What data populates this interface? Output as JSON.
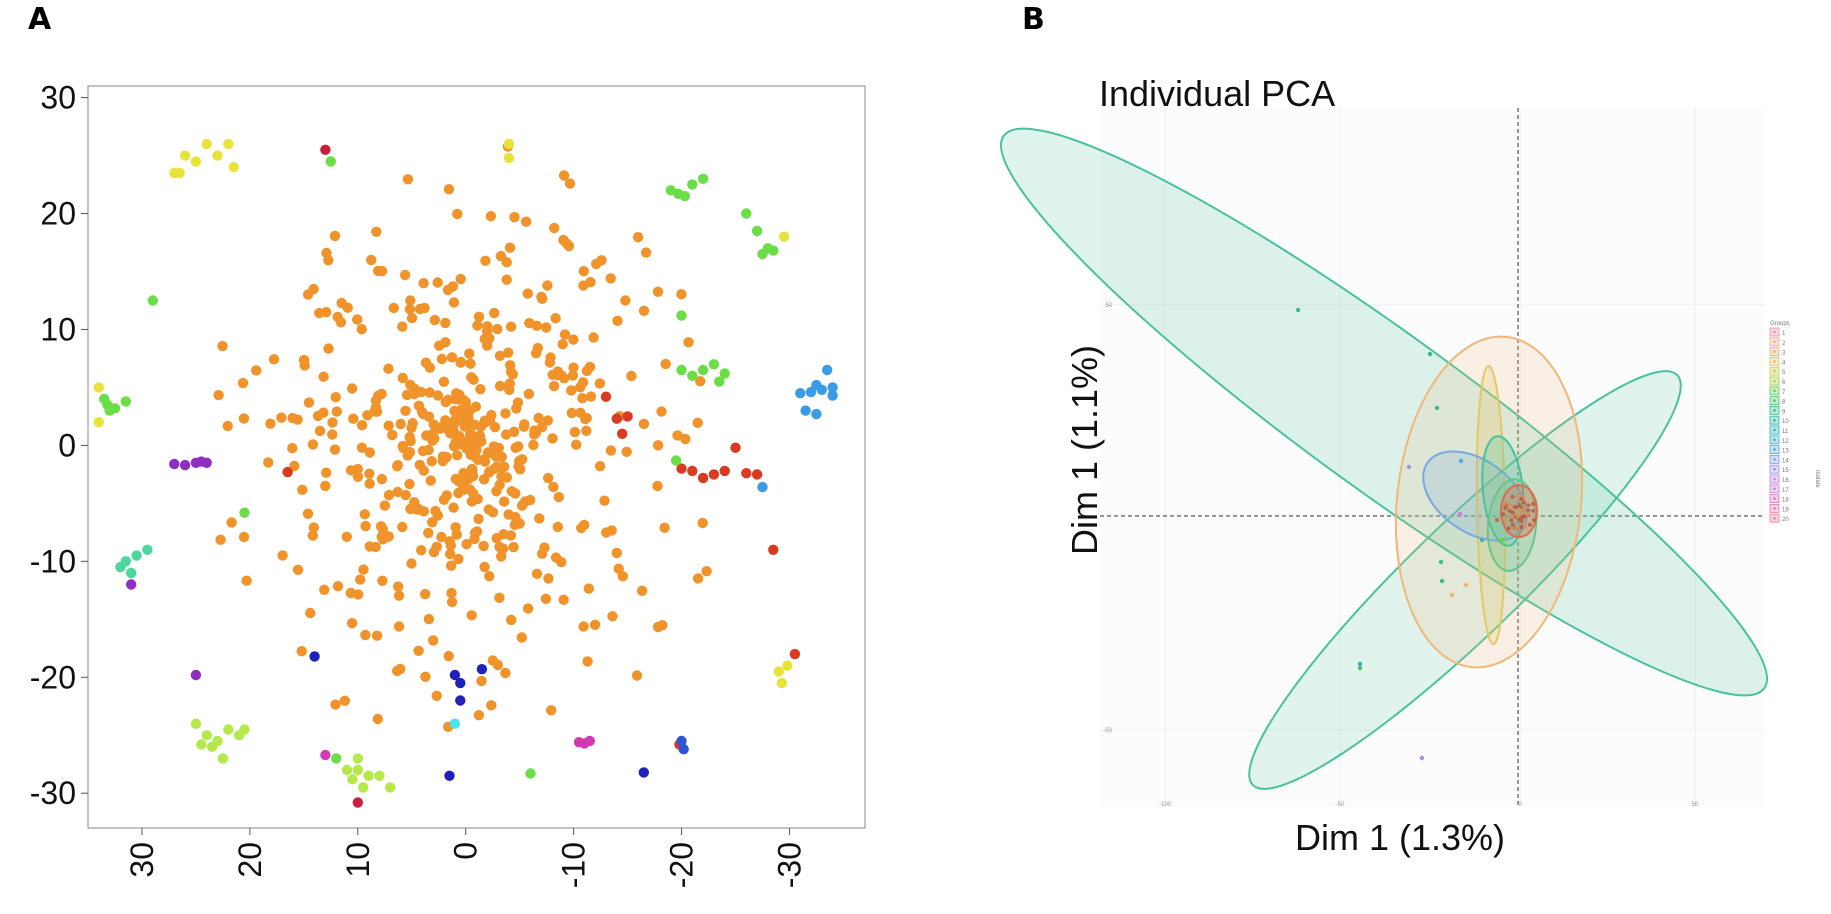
{
  "panels": {
    "a_label": "A",
    "b_label": "B"
  },
  "chart_data": [
    {
      "type": "scatter",
      "panel": "A",
      "title": "",
      "xlabel": "",
      "ylabel": "",
      "xlim": [
        35,
        -37
      ],
      "ylim": [
        -33,
        31
      ],
      "x_ticks": [
        30,
        20,
        10,
        0,
        -10,
        -20,
        -30
      ],
      "x_tick_labels": [
        "30",
        "20",
        "10",
        "0",
        "-10",
        "-20",
        "-30"
      ],
      "y_ticks": [
        30,
        20,
        10,
        0,
        -10,
        -20,
        -30
      ],
      "y_tick_labels": [
        "30",
        "20",
        "10",
        "0",
        "-10",
        "-20",
        "-30"
      ],
      "colors": {
        "orange": "#f0932b",
        "yellow": "#e8e33a",
        "lime": "#b5e84a",
        "green": "#6bdd46",
        "teal": "#4cd7a0",
        "cyan": "#4ee2ee",
        "sky": "#3a9be6",
        "blue": "#2f55d6",
        "navy": "#1f22b8",
        "purple": "#8d2fc0",
        "magenta": "#d23ab4",
        "red": "#d83a22",
        "crimson": "#c71f3c"
      },
      "clusters": [
        {
          "color": "yellow",
          "points": [
            [
              26,
              25
            ],
            [
              25,
              24.5
            ],
            [
              23,
              25
            ],
            [
              24,
              26
            ],
            [
              22,
              26
            ],
            [
              21.5,
              24
            ],
            [
              26.5,
              23.5
            ],
            [
              27,
              23.5
            ]
          ]
        },
        {
          "color": "crimson",
          "points": [
            [
              13,
              25.5
            ]
          ]
        },
        {
          "color": "green",
          "points": [
            [
              12.5,
              24.5
            ]
          ]
        },
        {
          "color": "yellow",
          "points": [
            [
              -4,
              26
            ],
            [
              -4,
              24.8
            ]
          ]
        },
        {
          "color": "green",
          "points": [
            [
              -19,
              22
            ],
            [
              -19.7,
              21.7
            ],
            [
              -20.3,
              21.5
            ],
            [
              -21,
              22.5
            ],
            [
              -22,
              23
            ]
          ]
        },
        {
          "color": "green",
          "points": [
            [
              -26,
              20
            ],
            [
              -27,
              18.5
            ],
            [
              -28,
              17
            ],
            [
              -27.5,
              16.5
            ],
            [
              -28.5,
              16.8
            ]
          ]
        },
        {
          "color": "yellow",
          "points": [
            [
              -29.5,
              18
            ]
          ]
        },
        {
          "color": "green",
          "points": [
            [
              29,
              12.5
            ]
          ]
        },
        {
          "color": "green",
          "points": [
            [
              -20,
              11.2
            ]
          ]
        },
        {
          "color": "green",
          "points": [
            [
              -20,
              6.5
            ],
            [
              -21,
              6
            ],
            [
              -22,
              6.5
            ],
            [
              -23,
              7
            ],
            [
              -24,
              6.2
            ],
            [
              -23.5,
              5.5
            ]
          ]
        },
        {
          "color": "sky",
          "points": [
            [
              -31,
              4.5
            ],
            [
              -32,
              4.6
            ],
            [
              -33,
              4.8
            ],
            [
              -34,
              5
            ],
            [
              -33.5,
              6.5
            ],
            [
              -32.5,
              5.2
            ],
            [
              -34,
              4.3
            ]
          ]
        },
        {
          "color": "sky",
          "points": [
            [
              -31.5,
              3
            ],
            [
              -32.5,
              2.7
            ]
          ]
        },
        {
          "color": "green",
          "points": [
            [
              33.5,
              4
            ],
            [
              32.5,
              3.2
            ],
            [
              31.5,
              3.8
            ],
            [
              33.2,
              3.5
            ],
            [
              33,
              3
            ]
          ]
        },
        {
          "color": "yellow",
          "points": [
            [
              34,
              5
            ],
            [
              34,
              2
            ]
          ]
        },
        {
          "color": "red",
          "points": [
            [
              -13,
              4.2
            ],
            [
              -14,
              2.3
            ],
            [
              -15,
              2.5
            ],
            [
              -14.5,
              1
            ]
          ]
        },
        {
          "color": "red",
          "points": [
            [
              -21,
              -2.2
            ],
            [
              -22,
              -2.8
            ],
            [
              -23,
              -2.5
            ],
            [
              -24,
              -2.2
            ],
            [
              -25,
              -0.2
            ],
            [
              -26,
              -2.4
            ],
            [
              -27,
              -2.5
            ]
          ]
        },
        {
          "color": "red",
          "points": [
            [
              -20,
              -2
            ]
          ]
        },
        {
          "color": "sky",
          "points": [
            [
              -27.5,
              -3.6
            ]
          ]
        },
        {
          "color": "green",
          "points": [
            [
              -19.5,
              -1.3
            ]
          ]
        },
        {
          "color": "purple",
          "points": [
            [
              27,
              -1.6
            ],
            [
              26,
              -1.7
            ],
            [
              25,
              -1.5
            ],
            [
              24.5,
              -1.4
            ],
            [
              24,
              -1.5
            ]
          ]
        },
        {
          "color": "red",
          "points": [
            [
              16.5,
              -2.3
            ]
          ]
        },
        {
          "color": "green",
          "points": [
            [
              20.5,
              -5.8
            ]
          ]
        },
        {
          "color": "teal",
          "points": [
            [
              31.5,
              -10
            ],
            [
              30.5,
              -9.5
            ],
            [
              29.5,
              -9
            ],
            [
              32,
              -10.5
            ],
            [
              31,
              -11
            ]
          ]
        },
        {
          "color": "purple",
          "points": [
            [
              31,
              -12
            ]
          ]
        },
        {
          "color": "red",
          "points": [
            [
              -28.5,
              -9
            ]
          ]
        },
        {
          "color": "red",
          "points": [
            [
              -30.5,
              -18
            ]
          ]
        },
        {
          "color": "yellow",
          "points": [
            [
              -29,
              -19.5
            ],
            [
              -29.3,
              -20.5
            ],
            [
              -29.8,
              -19
            ]
          ]
        },
        {
          "color": "navy",
          "points": [
            [
              14,
              -18.2
            ]
          ]
        },
        {
          "color": "purple",
          "points": [
            [
              25,
              -19.8
            ]
          ]
        },
        {
          "color": "navy",
          "points": [
            [
              1,
              -19.8
            ],
            [
              0.5,
              -20.5
            ],
            [
              0.5,
              -22
            ],
            [
              -1.5,
              -19.3
            ]
          ]
        },
        {
          "color": "cyan",
          "points": [
            [
              1,
              -24
            ]
          ]
        },
        {
          "color": "lime",
          "points": [
            [
              25,
              -24
            ],
            [
              24,
              -25
            ],
            [
              23,
              -25.5
            ],
            [
              22,
              -24.5
            ],
            [
              23.5,
              -26
            ],
            [
              22.5,
              -27
            ],
            [
              21,
              -25
            ],
            [
              20.5,
              -24.5
            ],
            [
              24.5,
              -25.8
            ]
          ]
        },
        {
          "color": "magenta",
          "points": [
            [
              13,
              -26.7
            ]
          ]
        },
        {
          "color": "green",
          "points": [
            [
              12,
              -27
            ]
          ]
        },
        {
          "color": "lime",
          "points": [
            [
              10,
              -27
            ],
            [
              9,
              -28.5
            ],
            [
              10.5,
              -28.8
            ],
            [
              11,
              -28
            ],
            [
              8,
              -28.5
            ],
            [
              7,
              -29.5
            ],
            [
              9.5,
              -29.5
            ],
            [
              10,
              -28
            ]
          ]
        },
        {
          "color": "crimson",
          "points": [
            [
              10,
              -30.8
            ]
          ]
        },
        {
          "color": "navy",
          "points": [
            [
              1.5,
              -28.5
            ]
          ]
        },
        {
          "color": "green",
          "points": [
            [
              -6,
              -28.3
            ]
          ]
        },
        {
          "color": "magenta",
          "points": [
            [
              -10.5,
              -25.6
            ],
            [
              -11,
              -25.7
            ],
            [
              -11.5,
              -25.5
            ]
          ]
        },
        {
          "color": "navy",
          "points": [
            [
              -16.5,
              -28.2
            ]
          ]
        },
        {
          "color": "red",
          "points": [
            [
              -19.8,
              -25.8
            ]
          ]
        },
        {
          "color": "blue",
          "points": [
            [
              -20,
              -25.5
            ],
            [
              -20.2,
              -26.2
            ]
          ]
        }
      ],
      "main_cluster_color": "orange",
      "main_cluster_points": 520
    },
    {
      "type": "scatter",
      "panel": "B",
      "title": "Individual PCA",
      "xlabel": "Dim 1 (1.3%)",
      "ylabel": "Dim 1 (1.1%)",
      "x_ticks_faint": [
        "-100",
        "-50",
        "0",
        "50"
      ],
      "y_ticks_faint": [
        "50",
        "-50"
      ],
      "legend_title": "Groups",
      "legend_side_label": "Isolate",
      "legend_entries": [
        "1",
        "2",
        "3",
        "4",
        "5",
        "6",
        "7",
        "8",
        "9",
        "10",
        "11",
        "12",
        "13",
        "14",
        "15",
        "16",
        "17",
        "18",
        "19",
        "20"
      ],
      "legend_colors": [
        "#f18fb0",
        "#f3a98b",
        "#efb36a",
        "#e4c35a",
        "#c6ce4e",
        "#9ed14c",
        "#6ecb55",
        "#4fc26c",
        "#3cbc86",
        "#33b89f",
        "#31b6b5",
        "#3bb2c9",
        "#55abd9",
        "#7aa0e2",
        "#9d93e4",
        "#bb88de",
        "#d07fd2",
        "#df78c0",
        "#e878ad",
        "#ee829d"
      ],
      "ellipses": [
        {
          "name": "teal large diagonal",
          "color": "#48c29c"
        },
        {
          "name": "teal lower-left",
          "color": "#48c29c"
        },
        {
          "name": "orange tall",
          "color": "#f0b77a"
        },
        {
          "name": "yellow narrow",
          "color": "#e3c965"
        },
        {
          "name": "blue small",
          "color": "#78a8e0"
        },
        {
          "name": "teal small",
          "color": "#48c29c"
        },
        {
          "name": "green small",
          "color": "#6ac48a"
        },
        {
          "name": "red core",
          "color": "#e06a4a"
        }
      ]
    }
  ]
}
